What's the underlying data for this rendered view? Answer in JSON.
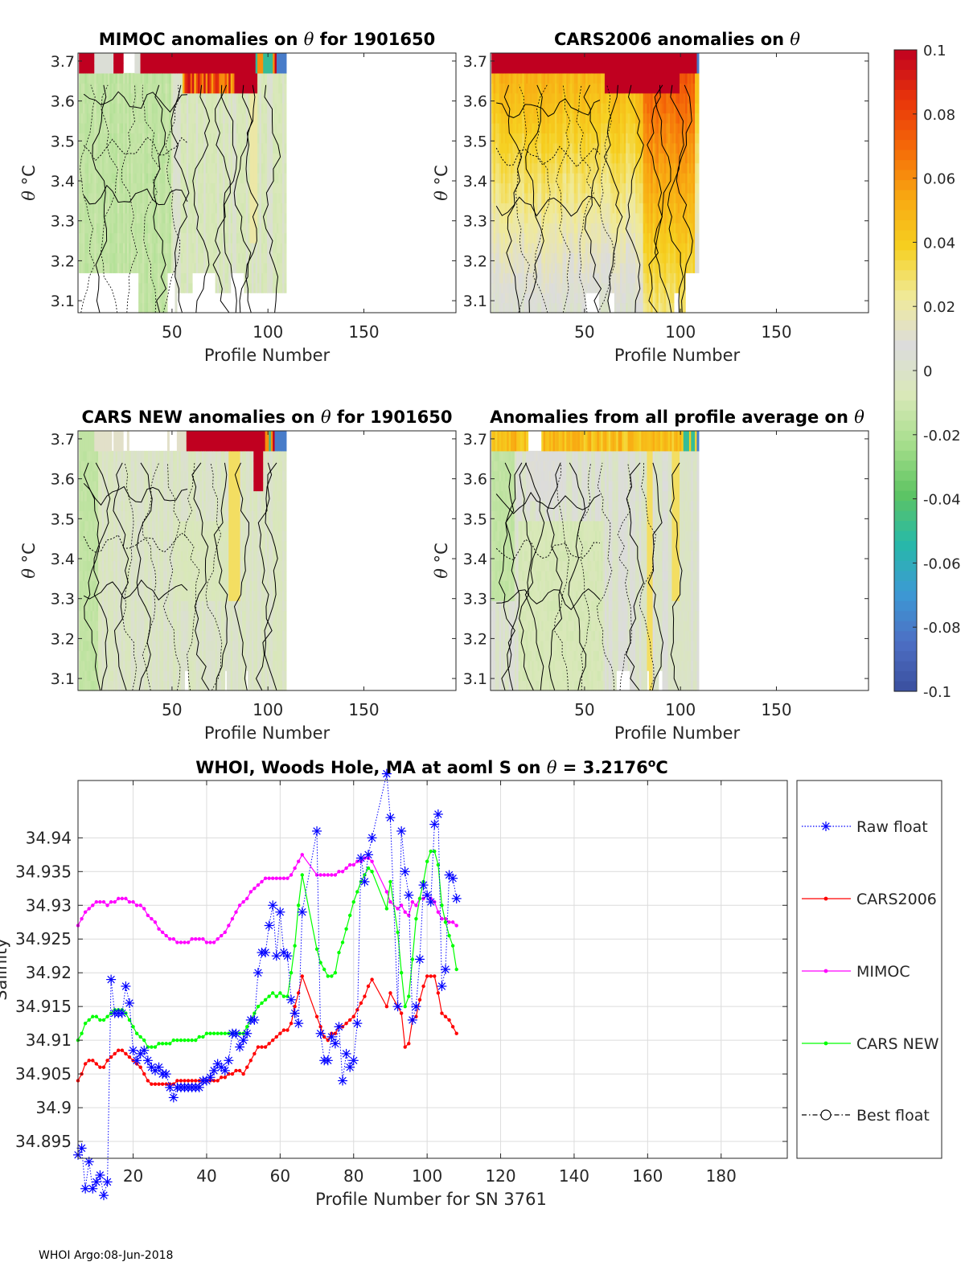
{
  "footer": "WHOI Argo:08-Jun-2018",
  "colors": {
    "raw_float": "#0000ff",
    "cars2006": "#ff0000",
    "mimoc": "#ff00ff",
    "cars_new": "#00ff00",
    "best_float": "#000000",
    "axis": "#262626",
    "grid": "#dcdcdc"
  },
  "chart_data": [
    {
      "type": "heatmap",
      "title_prefix": "MIMOC anomalies on ",
      "title_symbol": "θ",
      "title_suffix": "  for 1901650",
      "xlabel": "Profile Number",
      "ylabel_symbol": "θ",
      "ylabel_unit": " °C",
      "xlim": [
        1,
        198
      ],
      "ylim": [
        3.07,
        3.72
      ],
      "xticks": [
        "50",
        "100",
        "150"
      ],
      "yticks": [
        "3.1",
        "3.2",
        "3.3",
        "3.4",
        "3.5",
        "3.6",
        "3.7"
      ],
      "profile_extent": 109,
      "pattern": "mimoc"
    },
    {
      "type": "heatmap",
      "title_prefix": "CARS2006 anomalies on ",
      "title_symbol": "θ",
      "title_suffix": "",
      "xlabel": "Profile Number",
      "ylabel_symbol": "θ",
      "ylabel_unit": " °C",
      "xlim": [
        1,
        198
      ],
      "ylim": [
        3.07,
        3.72
      ],
      "xticks": [
        "50",
        "100",
        "150"
      ],
      "yticks": [
        "3.1",
        "3.2",
        "3.3",
        "3.4",
        "3.5",
        "3.6",
        "3.7"
      ],
      "profile_extent": 109,
      "pattern": "cars2006"
    },
    {
      "type": "heatmap",
      "title_prefix": "CARS NEW anomalies on ",
      "title_symbol": "θ",
      "title_suffix": " for 1901650",
      "xlabel": "Profile Number",
      "ylabel_symbol": "θ",
      "ylabel_unit": " °C",
      "xlim": [
        1,
        198
      ],
      "ylim": [
        3.07,
        3.72
      ],
      "xticks": [
        "50",
        "100",
        "150"
      ],
      "yticks": [
        "3.1",
        "3.2",
        "3.3",
        "3.4",
        "3.5",
        "3.6",
        "3.7"
      ],
      "profile_extent": 109,
      "pattern": "carsnew"
    },
    {
      "type": "heatmap",
      "title_prefix": "Anomalies from all profile average on ",
      "title_symbol": "θ",
      "title_suffix": "",
      "xlabel": "Profile Number",
      "ylabel_symbol": "θ",
      "ylabel_unit": " °C",
      "xlim": [
        1,
        198
      ],
      "ylim": [
        3.07,
        3.72
      ],
      "xticks": [
        "50",
        "100",
        "150"
      ],
      "yticks": [
        "3.1",
        "3.2",
        "3.3",
        "3.4",
        "3.5",
        "3.6",
        "3.7"
      ],
      "profile_extent": 109,
      "pattern": "average"
    },
    {
      "type": "colorbar",
      "range": [
        -0.1,
        0.1
      ],
      "tick_labels": [
        "0.1",
        "0.08",
        "0.06",
        "0.04",
        "0.02",
        "0",
        "-0.02",
        "-0.04",
        "-0.06",
        "-0.08",
        "-0.1"
      ],
      "colormap": [
        "#3a4f9e",
        "#4d6fc4",
        "#3c9ad4",
        "#27b9a8",
        "#5ec462",
        "#a6de8c",
        "#d9e8b8",
        "#dcdcdc",
        "#f0ea98",
        "#f6d020",
        "#f8a812",
        "#f56a08",
        "#e8340a",
        "#c00020"
      ]
    },
    {
      "type": "line",
      "title_prefix": "WHOI, Woods Hole, MA at aoml S on ",
      "title_symbol": "θ",
      "title_value": " = 3.2176",
      "title_deg": "o",
      "title_unit": "C",
      "xlabel": "Profile Number for SN 3761",
      "ylabel": "Salinity",
      "xlim": [
        5,
        198
      ],
      "ylim": [
        34.8925,
        34.9485
      ],
      "xticks": [
        20,
        40,
        60,
        80,
        100,
        120,
        140,
        160,
        180
      ],
      "xtick_labels": [
        "20",
        "40",
        "60",
        "80",
        "100",
        "120",
        "140",
        "160",
        "180"
      ],
      "yticks": [
        34.895,
        34.9,
        34.905,
        34.91,
        34.915,
        34.92,
        34.925,
        34.93,
        34.935,
        34.94
      ],
      "ytick_labels": [
        "34.895",
        "34.9",
        "34.905",
        "34.91",
        "34.915",
        "34.92",
        "34.925",
        "34.93",
        "34.935",
        "34.94"
      ],
      "grid": true,
      "legend_position": "outside-right",
      "series": [
        {
          "name": "Raw float",
          "key": "raw",
          "style": "dotted-star",
          "x": [
            5,
            6,
            7,
            8,
            9,
            10,
            11,
            12,
            13,
            14,
            15,
            16,
            17,
            18,
            19,
            20,
            21,
            22,
            23,
            24,
            25,
            26,
            27,
            28,
            29,
            30,
            31,
            32,
            33,
            34,
            35,
            36,
            37,
            38,
            39,
            40,
            41,
            42,
            43,
            44,
            45,
            46,
            47,
            48,
            49,
            50,
            51,
            52,
            53,
            54,
            55,
            56,
            57,
            58,
            59,
            60,
            61,
            62,
            63,
            64,
            65,
            66,
            70,
            71,
            72,
            73,
            74,
            75,
            76,
            77,
            78,
            79,
            80,
            81,
            82,
            83,
            84,
            85,
            89,
            90,
            92,
            93,
            94,
            95,
            96,
            97,
            98,
            99,
            100,
            101,
            102,
            103,
            104,
            105,
            106,
            107,
            108
          ],
          "values": [
            34.893,
            34.894,
            34.888,
            34.892,
            34.888,
            34.889,
            34.89,
            34.887,
            34.889,
            34.919,
            34.914,
            34.914,
            34.914,
            34.918,
            34.9155,
            34.9085,
            34.907,
            34.908,
            34.9085,
            34.907,
            34.906,
            34.9055,
            34.906,
            34.905,
            34.905,
            34.903,
            34.9015,
            34.903,
            34.903,
            34.903,
            34.903,
            34.903,
            34.903,
            34.903,
            34.904,
            34.904,
            34.9045,
            34.9055,
            34.9065,
            34.906,
            34.9055,
            34.907,
            34.911,
            34.911,
            34.909,
            34.91,
            34.911,
            34.913,
            34.913,
            34.92,
            34.923,
            34.923,
            34.927,
            34.93,
            34.9225,
            34.929,
            34.923,
            34.9225,
            34.916,
            34.914,
            34.9125,
            34.929,
            34.941,
            34.911,
            34.907,
            34.907,
            34.9105,
            34.9095,
            34.912,
            34.904,
            34.908,
            34.906,
            34.907,
            34.9125,
            34.937,
            34.9335,
            34.9375,
            34.94,
            34.9495,
            34.943,
            34.915,
            34.941,
            34.935,
            34.9315,
            34.913,
            34.915,
            34.922,
            34.933,
            34.9315,
            34.9305,
            34.942,
            34.9435,
            34.918,
            34.9205,
            34.9345,
            34.934,
            34.931
          ]
        },
        {
          "name": "CARS2006",
          "key": "cars2006",
          "style": "solid-dot",
          "x": [
            5,
            6,
            7,
            8,
            9,
            10,
            11,
            12,
            13,
            14,
            15,
            16,
            17,
            18,
            19,
            20,
            21,
            22,
            23,
            24,
            25,
            26,
            27,
            28,
            29,
            30,
            31,
            32,
            33,
            34,
            35,
            36,
            37,
            38,
            39,
            40,
            41,
            42,
            43,
            44,
            45,
            46,
            47,
            48,
            49,
            50,
            51,
            52,
            53,
            54,
            55,
            56,
            57,
            58,
            59,
            60,
            61,
            62,
            63,
            64,
            65,
            66,
            70,
            71,
            72,
            73,
            74,
            75,
            76,
            77,
            78,
            79,
            80,
            81,
            82,
            83,
            84,
            85,
            89,
            90,
            92,
            93,
            94,
            95,
            96,
            97,
            98,
            99,
            100,
            101,
            102,
            103,
            104,
            105,
            106,
            107,
            108
          ],
          "values": [
            34.904,
            34.905,
            34.9065,
            34.907,
            34.907,
            34.9065,
            34.906,
            34.906,
            34.907,
            34.9075,
            34.908,
            34.9085,
            34.9085,
            34.908,
            34.9075,
            34.907,
            34.9065,
            34.906,
            34.905,
            34.904,
            34.9035,
            34.9035,
            34.9035,
            34.9035,
            34.9035,
            34.9035,
            34.9035,
            34.904,
            34.904,
            34.904,
            34.904,
            34.904,
            34.904,
            34.904,
            34.904,
            34.904,
            34.904,
            34.904,
            34.904,
            34.9045,
            34.9045,
            34.905,
            34.905,
            34.9055,
            34.9055,
            34.905,
            34.906,
            34.907,
            34.908,
            34.909,
            34.909,
            34.909,
            34.9095,
            34.91,
            34.9105,
            34.911,
            34.9115,
            34.9115,
            34.9125,
            34.915,
            34.917,
            34.9195,
            34.9135,
            34.912,
            34.9105,
            34.91,
            34.911,
            34.911,
            34.912,
            34.912,
            34.9125,
            34.913,
            34.9135,
            34.9145,
            34.9155,
            34.9165,
            34.918,
            34.919,
            34.915,
            34.917,
            34.915,
            34.914,
            34.909,
            34.9095,
            34.913,
            34.9135,
            34.916,
            34.918,
            34.9195,
            34.9195,
            34.9195,
            34.917,
            34.914,
            34.9135,
            34.913,
            34.912,
            34.911
          ]
        },
        {
          "name": "MIMOC",
          "key": "mimoc",
          "style": "solid-dot",
          "x": [
            5,
            6,
            7,
            8,
            9,
            10,
            11,
            12,
            13,
            14,
            15,
            16,
            17,
            18,
            19,
            20,
            21,
            22,
            23,
            24,
            25,
            26,
            27,
            28,
            29,
            30,
            31,
            32,
            33,
            34,
            35,
            36,
            37,
            38,
            39,
            40,
            41,
            42,
            43,
            44,
            45,
            46,
            47,
            48,
            49,
            50,
            51,
            52,
            53,
            54,
            55,
            56,
            57,
            58,
            59,
            60,
            61,
            62,
            63,
            64,
            65,
            66,
            70,
            71,
            72,
            73,
            74,
            75,
            76,
            77,
            78,
            79,
            80,
            81,
            82,
            83,
            84,
            85,
            89,
            90,
            92,
            93,
            94,
            95,
            96,
            97,
            98,
            99,
            100,
            101,
            102,
            103,
            104,
            105,
            106,
            107,
            108
          ],
          "values": [
            34.927,
            34.928,
            34.929,
            34.9295,
            34.93,
            34.9305,
            34.9305,
            34.9305,
            34.93,
            34.9305,
            34.9305,
            34.931,
            34.931,
            34.931,
            34.9305,
            34.9305,
            34.93,
            34.93,
            34.9295,
            34.9285,
            34.928,
            34.9275,
            34.9265,
            34.926,
            34.9255,
            34.925,
            34.925,
            34.9245,
            34.9245,
            34.9245,
            34.9245,
            34.925,
            34.925,
            34.925,
            34.925,
            34.9245,
            34.9245,
            34.9245,
            34.925,
            34.9255,
            34.926,
            34.927,
            34.928,
            34.929,
            34.93,
            34.9305,
            34.931,
            34.932,
            34.9325,
            34.933,
            34.9335,
            34.934,
            34.934,
            34.934,
            34.934,
            34.934,
            34.934,
            34.934,
            34.9345,
            34.9355,
            34.9365,
            34.9375,
            34.9345,
            34.9345,
            34.9345,
            34.9345,
            34.9345,
            34.9345,
            34.935,
            34.935,
            34.9355,
            34.936,
            34.936,
            34.9365,
            34.9365,
            34.937,
            34.937,
            34.9365,
            34.932,
            34.9305,
            34.9295,
            34.93,
            34.929,
            34.9285,
            34.9305,
            34.93,
            34.931,
            34.931,
            34.9315,
            34.931,
            34.9305,
            34.929,
            34.928,
            34.928,
            34.9275,
            34.9275,
            34.927
          ]
        },
        {
          "name": "CARS NEW",
          "key": "carsnew",
          "style": "solid-dot",
          "x": [
            5,
            6,
            7,
            8,
            9,
            10,
            11,
            12,
            13,
            14,
            15,
            16,
            17,
            18,
            19,
            20,
            21,
            22,
            23,
            24,
            25,
            26,
            27,
            28,
            29,
            30,
            31,
            32,
            33,
            34,
            35,
            36,
            37,
            38,
            39,
            40,
            41,
            42,
            43,
            44,
            45,
            46,
            47,
            48,
            49,
            50,
            51,
            52,
            53,
            54,
            55,
            56,
            57,
            58,
            59,
            60,
            61,
            62,
            63,
            64,
            65,
            66,
            70,
            71,
            72,
            73,
            74,
            75,
            76,
            77,
            78,
            79,
            80,
            81,
            82,
            83,
            84,
            85,
            89,
            90,
            92,
            93,
            94,
            95,
            96,
            97,
            98,
            99,
            100,
            101,
            102,
            103,
            104,
            105,
            106,
            107,
            108
          ],
          "values": [
            34.91,
            34.911,
            34.9125,
            34.913,
            34.9135,
            34.9135,
            34.913,
            34.913,
            34.9135,
            34.914,
            34.9145,
            34.9145,
            34.9145,
            34.914,
            34.913,
            34.912,
            34.911,
            34.9105,
            34.91,
            34.909,
            34.909,
            34.909,
            34.9095,
            34.9095,
            34.9095,
            34.9095,
            34.91,
            34.91,
            34.91,
            34.91,
            34.91,
            34.91,
            34.91,
            34.9105,
            34.9105,
            34.911,
            34.911,
            34.911,
            34.911,
            34.911,
            34.911,
            34.911,
            34.911,
            34.911,
            34.911,
            34.911,
            34.912,
            34.913,
            34.914,
            34.915,
            34.9155,
            34.916,
            34.9165,
            34.917,
            34.9165,
            34.917,
            34.9165,
            34.9165,
            34.92,
            34.924,
            34.93,
            34.9345,
            34.9235,
            34.9215,
            34.9205,
            34.9195,
            34.9195,
            34.92,
            34.923,
            34.9245,
            34.9265,
            34.9285,
            34.9305,
            34.932,
            34.9335,
            34.9345,
            34.9355,
            34.935,
            34.9295,
            34.9335,
            34.926,
            34.92,
            34.915,
            34.9165,
            34.922,
            34.928,
            34.931,
            34.9335,
            34.9365,
            34.938,
            34.938,
            34.936,
            34.93,
            34.9275,
            34.9255,
            34.924,
            34.9205
          ]
        },
        {
          "name": "Best float",
          "key": "best",
          "style": "dashdot-circle",
          "x": [],
          "values": []
        }
      ]
    }
  ]
}
